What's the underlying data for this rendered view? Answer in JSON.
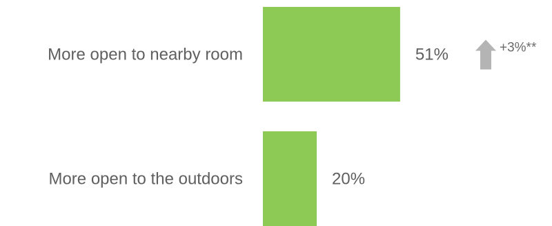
{
  "chart_data": {
    "type": "bar",
    "orientation": "horizontal",
    "categories": [
      "More open to nearby room",
      "More open to the outdoors"
    ],
    "values": [
      51,
      20
    ],
    "value_labels": [
      "51%",
      "20%"
    ],
    "changes": [
      {
        "index": 0,
        "direction": "up",
        "label": "+3%**"
      }
    ],
    "xlim": [
      0,
      100
    ],
    "grid": false,
    "colors": {
      "bar": "#8cc955",
      "text": "#5f5f5f",
      "arrow": "#b4b4b4"
    }
  }
}
